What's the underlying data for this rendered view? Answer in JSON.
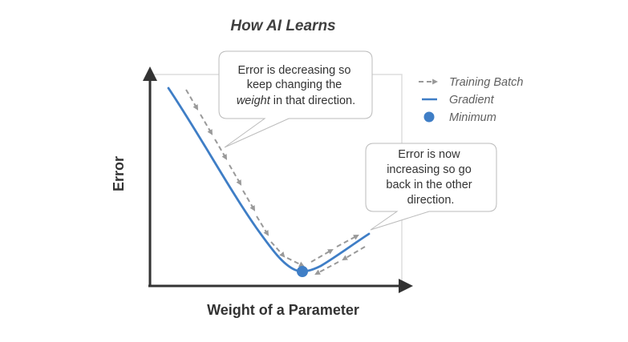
{
  "title": "How AI Learns",
  "axes": {
    "x_label": "Weight of a Parameter",
    "y_label": "Error"
  },
  "legend": {
    "items": [
      {
        "label": "Training Batch",
        "icon": "dashed-arrow-icon",
        "color": "#999999"
      },
      {
        "label": "Gradient",
        "icon": "line-icon",
        "color": "#3f7ec6"
      },
      {
        "label": "Minimum",
        "icon": "dot-icon",
        "color": "#3f7ec6"
      }
    ]
  },
  "callouts": {
    "decreasing": {
      "line1": "Error is decreasing so",
      "line2": "keep changing the",
      "line3_em": "weight",
      "line3_rest": " in that direction."
    },
    "increasing": {
      "line1": "Error is now",
      "line2": "increasing so go",
      "line3": "back in the other",
      "line4": "direction."
    }
  },
  "colors": {
    "gradient": "#3f7ec6",
    "minimum": "#3f7ec6",
    "training_batch": "#999999",
    "axis": "#333333",
    "plot_border": "#dddddd",
    "callout_border": "#bbbbbb",
    "text": "#333333"
  }
}
